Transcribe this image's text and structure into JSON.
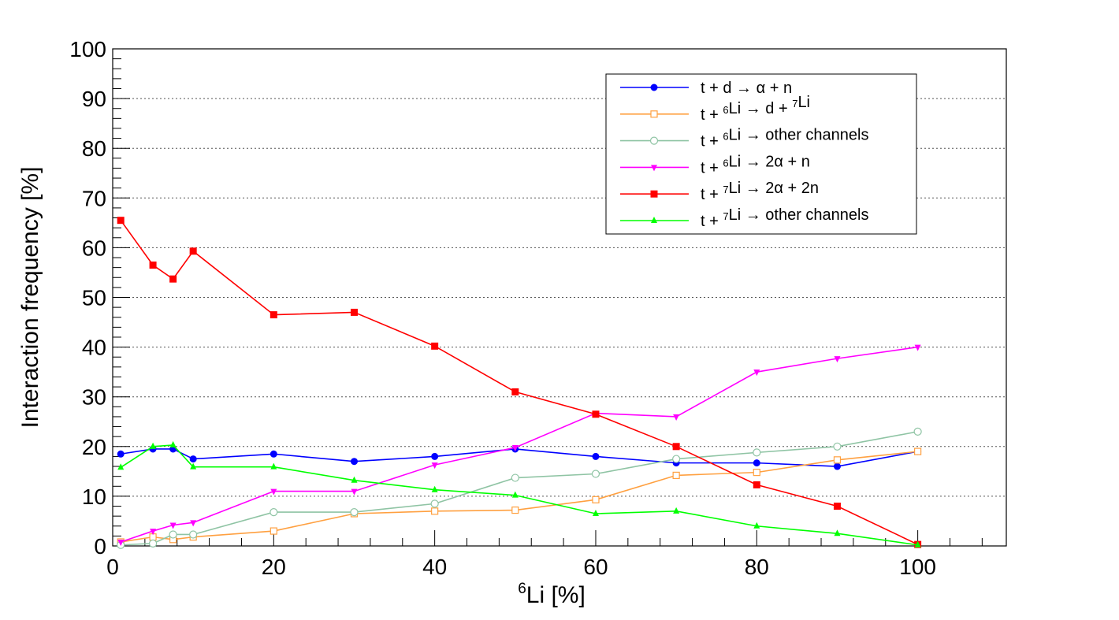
{
  "chart_data": {
    "type": "line",
    "xlabel": {
      "sup": "6",
      "text": "Li [%]"
    },
    "ylabel": "Interaction frequency [%]",
    "xlim": [
      0,
      111
    ],
    "ylim": [
      0,
      100
    ],
    "x_ticks": [
      0,
      20,
      40,
      60,
      80,
      100
    ],
    "y_ticks": [
      0,
      10,
      20,
      30,
      40,
      50,
      60,
      70,
      80,
      90,
      100
    ],
    "grid": {
      "horizontal": true,
      "vertical": false,
      "style": "dotted"
    },
    "legend_position": "top-right",
    "x": [
      1,
      5,
      7.5,
      10,
      20,
      30,
      40,
      50,
      60,
      70,
      80,
      90,
      100
    ],
    "series": [
      {
        "name": "t + d → α + n",
        "legend_parts": [
          {
            "t": "t + d → α + n"
          }
        ],
        "color": "#0000ff",
        "marker": "circle-filled",
        "values": [
          18.5,
          19.5,
          19.5,
          17.5,
          18.5,
          17,
          18,
          19.5,
          18,
          16.7,
          16.7,
          16,
          19
        ]
      },
      {
        "name": "t + 6Li → d + 7Li",
        "legend_parts": [
          {
            "t": "t + "
          },
          {
            "sup": "6"
          },
          {
            "t": "Li → d + "
          },
          {
            "sup": "7"
          },
          {
            "t": "Li"
          }
        ],
        "color": "#ffa040",
        "marker": "square-open",
        "values": [
          0.8,
          1.8,
          1.3,
          1.8,
          3,
          6.5,
          7,
          7.2,
          9.3,
          14.2,
          14.8,
          17.3,
          19
        ]
      },
      {
        "name": "t + 6Li → other channels",
        "legend_parts": [
          {
            "t": "t + "
          },
          {
            "sup": "6"
          },
          {
            "t": "Li → other channels"
          }
        ],
        "color": "#8fc4a4",
        "marker": "circle-open",
        "values": [
          0.2,
          0.5,
          2.3,
          2.3,
          6.8,
          6.8,
          8.5,
          13.7,
          14.5,
          17.5,
          18.8,
          20,
          23
        ]
      },
      {
        "name": "t + 6Li → 2α + n",
        "legend_parts": [
          {
            "t": "t + "
          },
          {
            "sup": "6"
          },
          {
            "t": "Li → 2α + n"
          }
        ],
        "color": "#ff00ff",
        "marker": "triangle-down",
        "values": [
          0.8,
          3,
          4.2,
          4.7,
          11,
          11,
          16.3,
          19.8,
          26.7,
          26,
          35,
          37.7,
          40
        ]
      },
      {
        "name": "t + 7Li → 2α + 2n",
        "legend_parts": [
          {
            "t": "t + "
          },
          {
            "sup": "7"
          },
          {
            "t": "Li → 2α + 2n"
          }
        ],
        "color": "#ff0000",
        "marker": "square-filled",
        "values": [
          65.5,
          56.5,
          53.7,
          59.3,
          46.5,
          47,
          40.2,
          31,
          26.5,
          20,
          12.3,
          8,
          0.3
        ]
      },
      {
        "name": "t + 7Li → other channels",
        "legend_parts": [
          {
            "t": "t + "
          },
          {
            "sup": "7"
          },
          {
            "t": "Li → other channels"
          }
        ],
        "color": "#00ff00",
        "marker": "triangle-up",
        "values": [
          15.8,
          20,
          20.3,
          15.9,
          15.9,
          13.2,
          11.3,
          10.2,
          6.5,
          7,
          4,
          2.5,
          0.2
        ]
      }
    ]
  }
}
